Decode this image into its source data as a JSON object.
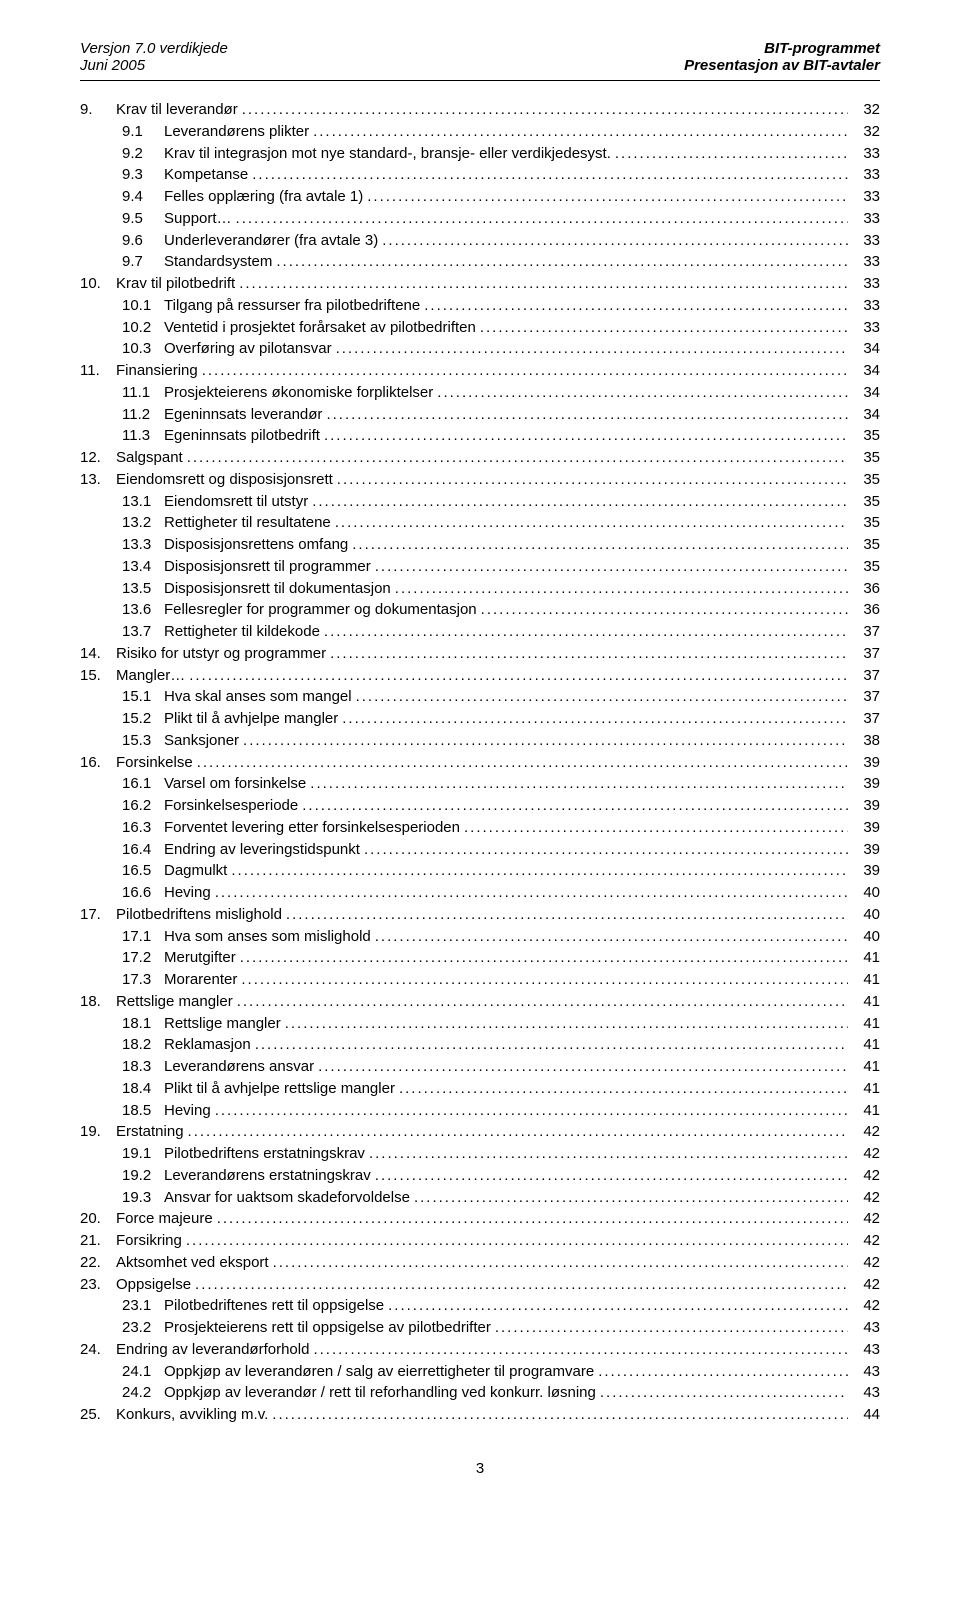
{
  "header": {
    "left_line1": "Versjon 7.0 verdikjede",
    "left_line2": "Juni 2005",
    "right_line1": "BIT-programmet",
    "right_line2": "Presentasjon av BIT-avtaler"
  },
  "toc": [
    {
      "level": 0,
      "num": "9.",
      "title": "Krav til leverandør",
      "page": "32"
    },
    {
      "level": 1,
      "num": "9.1",
      "title": "Leverandørens plikter",
      "page": "32"
    },
    {
      "level": 1,
      "num": "9.2",
      "title": "Krav til integrasjon mot nye standard-, bransje- eller verdikjedesyst.",
      "page": "33"
    },
    {
      "level": 1,
      "num": "9.3",
      "title": "Kompetanse",
      "page": "33"
    },
    {
      "level": 1,
      "num": "9.4",
      "title": "Felles opplæring (fra avtale 1)",
      "page": "33"
    },
    {
      "level": 1,
      "num": "9.5",
      "title": "Support…",
      "page": "33"
    },
    {
      "level": 1,
      "num": "9.6",
      "title": "Underleverandører  (fra avtale 3)",
      "page": "33"
    },
    {
      "level": 1,
      "num": "9.7",
      "title": "Standardsystem",
      "page": "33"
    },
    {
      "level": 0,
      "num": "10.",
      "title": "Krav til pilotbedrift",
      "page": "33"
    },
    {
      "level": 1,
      "num": "10.1",
      "title": "Tilgang på ressurser fra pilotbedriftene",
      "page": "33"
    },
    {
      "level": 1,
      "num": "10.2",
      "title": "Ventetid i prosjektet forårsaket av pilotbedriften",
      "page": "33"
    },
    {
      "level": 1,
      "num": "10.3",
      "title": "Overføring av pilotansvar",
      "page": "34"
    },
    {
      "level": 0,
      "num": "11.",
      "title": "Finansiering",
      "page": "34"
    },
    {
      "level": 1,
      "num": "11.1",
      "title": "Prosjekteierens økonomiske forpliktelser",
      "page": "34"
    },
    {
      "level": 1,
      "num": "11.2",
      "title": "Egeninnsats leverandør",
      "page": "34"
    },
    {
      "level": 1,
      "num": "11.3",
      "title": "Egeninnsats pilotbedrift",
      "page": "35"
    },
    {
      "level": 0,
      "num": "12.",
      "title": "Salgspant",
      "page": "35"
    },
    {
      "level": 0,
      "num": "13.",
      "title": "Eiendomsrett og disposisjonsrett",
      "page": "35"
    },
    {
      "level": 1,
      "num": "13.1",
      "title": "Eiendomsrett til utstyr",
      "page": "35"
    },
    {
      "level": 1,
      "num": "13.2",
      "title": "Rettigheter til resultatene",
      "page": "35"
    },
    {
      "level": 1,
      "num": "13.3",
      "title": "Disposisjonsrettens omfang",
      "page": "35"
    },
    {
      "level": 1,
      "num": "13.4",
      "title": "Disposisjonsrett til programmer",
      "page": "35"
    },
    {
      "level": 1,
      "num": "13.5",
      "title": "Disposisjonsrett til dokumentasjon",
      "page": "36"
    },
    {
      "level": 1,
      "num": "13.6",
      "title": "Fellesregler for programmer og dokumentasjon",
      "page": "36"
    },
    {
      "level": 1,
      "num": "13.7",
      "title": "Rettigheter til kildekode",
      "page": "37"
    },
    {
      "level": 0,
      "num": "14.",
      "title": "Risiko for utstyr og programmer",
      "page": "37"
    },
    {
      "level": 0,
      "num": "15.",
      "title": "Mangler…",
      "page": "37"
    },
    {
      "level": 1,
      "num": "15.1",
      "title": "Hva skal anses som mangel",
      "page": "37"
    },
    {
      "level": 1,
      "num": "15.2",
      "title": "Plikt til å avhjelpe mangler",
      "page": "37"
    },
    {
      "level": 1,
      "num": "15.3",
      "title": "Sanksjoner",
      "page": "38"
    },
    {
      "level": 0,
      "num": "16.",
      "title": "Forsinkelse",
      "page": "39"
    },
    {
      "level": 1,
      "num": "16.1",
      "title": "Varsel om forsinkelse",
      "page": "39"
    },
    {
      "level": 1,
      "num": "16.2",
      "title": "Forsinkelsesperiode",
      "page": "39"
    },
    {
      "level": 1,
      "num": "16.3",
      "title": "Forventet levering etter forsinkelsesperioden",
      "page": "39"
    },
    {
      "level": 1,
      "num": "16.4",
      "title": "Endring av leveringstidspunkt",
      "page": "39"
    },
    {
      "level": 1,
      "num": "16.5",
      "title": "Dagmulkt",
      "page": "39"
    },
    {
      "level": 1,
      "num": "16.6",
      "title": "Heving",
      "page": "40"
    },
    {
      "level": 0,
      "num": "17.",
      "title": "Pilotbedriftens mislighold",
      "page": "40"
    },
    {
      "level": 1,
      "num": "17.1",
      "title": "Hva som anses som mislighold",
      "page": "40"
    },
    {
      "level": 1,
      "num": "17.2",
      "title": "Merutgifter",
      "page": "41"
    },
    {
      "level": 1,
      "num": "17.3",
      "title": "Morarenter",
      "page": "41"
    },
    {
      "level": 0,
      "num": "18.",
      "title": "Rettslige mangler",
      "page": "41"
    },
    {
      "level": 1,
      "num": "18.1",
      "title": "Rettslige mangler",
      "page": "41"
    },
    {
      "level": 1,
      "num": "18.2",
      "title": "Reklamasjon",
      "page": "41"
    },
    {
      "level": 1,
      "num": "18.3",
      "title": "Leverandørens ansvar",
      "page": "41"
    },
    {
      "level": 1,
      "num": "18.4",
      "title": "Plikt til å avhjelpe rettslige mangler",
      "page": "41"
    },
    {
      "level": 1,
      "num": "18.5",
      "title": "Heving",
      "page": "41"
    },
    {
      "level": 0,
      "num": "19.",
      "title": "Erstatning",
      "page": "42"
    },
    {
      "level": 1,
      "num": "19.1",
      "title": "Pilotbedriftens erstatningskrav",
      "page": "42"
    },
    {
      "level": 1,
      "num": "19.2",
      "title": "Leverandørens erstatningskrav",
      "page": "42"
    },
    {
      "level": 1,
      "num": "19.3",
      "title": "Ansvar for uaktsom skadeforvoldelse",
      "page": "42"
    },
    {
      "level": 0,
      "num": "20.",
      "title": "Force majeure",
      "page": "42"
    },
    {
      "level": 0,
      "num": "21.",
      "title": "Forsikring",
      "page": "42"
    },
    {
      "level": 0,
      "num": "22.",
      "title": "Aktsomhet ved eksport",
      "page": "42"
    },
    {
      "level": 0,
      "num": "23.",
      "title": "Oppsigelse",
      "page": "42"
    },
    {
      "level": 1,
      "num": "23.1",
      "title": "Pilotbedriftenes rett til oppsigelse",
      "page": "42"
    },
    {
      "level": 1,
      "num": "23.2",
      "title": "Prosjekteierens rett til oppsigelse av pilotbedrifter",
      "page": "43"
    },
    {
      "level": 0,
      "num": "24.",
      "title": "Endring av leverandørforhold",
      "page": "43"
    },
    {
      "level": 1,
      "num": "24.1",
      "title": "Oppkjøp av leverandøren / salg av eierrettigheter til programvare",
      "page": "43"
    },
    {
      "level": 1,
      "num": "24.2",
      "title": "Oppkjøp av leverandør / rett til reforhandling ved konkurr. løsning",
      "page": "43"
    },
    {
      "level": 0,
      "num": "25.",
      "title": "Konkurs, avvikling m.v.",
      "page": "44"
    }
  ],
  "footer": {
    "page_number": "3"
  }
}
